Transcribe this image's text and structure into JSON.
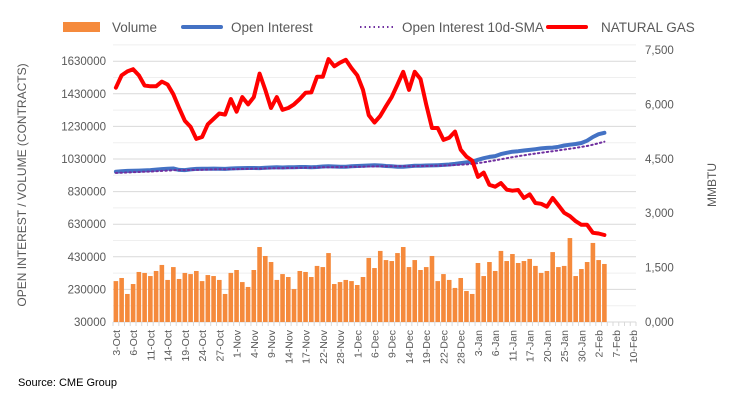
{
  "chart_data": {
    "type": "bar+line",
    "legend": {
      "placement": "top",
      "items": [
        {
          "label": "Volume",
          "color": "#F58A3C",
          "kind": "bar"
        },
        {
          "label": "Open Interest",
          "color": "#4472C4",
          "kind": "line"
        },
        {
          "label": "Open Interest 10d-SMA",
          "color": "#7030A0",
          "kind": "dotted"
        },
        {
          "label": "NATURAL GAS",
          "color": "#FF0000",
          "kind": "line"
        }
      ]
    },
    "ylabel_left": "OPEN INTEREST / VOLUME (CONTRACTS)",
    "ylabel_right": "MMBTU",
    "ylim_left": [
      30000,
      1730000
    ],
    "ylim_right": [
      0,
      7500
    ],
    "yticks_left": [
      "30000",
      "230000",
      "430000",
      "630000",
      "830000",
      "1030000",
      "1230000",
      "1430000",
      "1630000"
    ],
    "yticks_left_values": [
      30000,
      230000,
      430000,
      630000,
      830000,
      1030000,
      1230000,
      1430000,
      1630000
    ],
    "yticks_right": [
      "0,000",
      "1,500",
      "3,000",
      "4,500",
      "6,000",
      "7,500"
    ],
    "yticks_right_values": [
      0,
      1500,
      3000,
      4500,
      6000,
      7500
    ],
    "xtick_labels": [
      "3-Oct",
      "6-Oct",
      "11-Oct",
      "14-Oct",
      "19-Oct",
      "24-Oct",
      "27-Oct",
      "1-Nov",
      "4-Nov",
      "9-Nov",
      "14-Nov",
      "17-Nov",
      "22-Nov",
      "28-Nov",
      "1-Dec",
      "6-Dec",
      "9-Dec",
      "14-Dec",
      "19-Dec",
      "22-Dec",
      "28-Dec",
      "3-Jan",
      "6-Jan",
      "11-Jan",
      "17-Jan",
      "20-Jan",
      "25-Jan",
      "30-Jan",
      "2-Feb",
      "7-Feb",
      "10-Feb"
    ],
    "total_slots": 91,
    "grid": true,
    "series": [
      {
        "name": "Volume",
        "axis": "left",
        "values_thousands": [
          281,
          300,
          202,
          263,
          337,
          331,
          312,
          343,
          380,
          288,
          367,
          294,
          331,
          324,
          343,
          281,
          318,
          312,
          288,
          202,
          331,
          349,
          275,
          245,
          349,
          490,
          435,
          398,
          288,
          324,
          306,
          232,
          343,
          337,
          306,
          374,
          367,
          453,
          263,
          275,
          288,
          281,
          257,
          306,
          423,
          361,
          466,
          410,
          404,
          453,
          490,
          367,
          410,
          349,
          367,
          435,
          281,
          324,
          288,
          239,
          300,
          220,
          202,
          392,
          312,
          398,
          343,
          466,
          404,
          447,
          392,
          404,
          417,
          374,
          331,
          343,
          459,
          367,
          374,
          545,
          312,
          355,
          398,
          515,
          410,
          386
        ]
      },
      {
        "name": "Open Interest",
        "axis": "left",
        "values_thousands": [
          952,
          955,
          957,
          958,
          959,
          960,
          962,
          965,
          968,
          970,
          972,
          963,
          962,
          966,
          969,
          970,
          970,
          971,
          970,
          969,
          972,
          973,
          974,
          975,
          975,
          974,
          976,
          978,
          979,
          978,
          980,
          980,
          981,
          981,
          980,
          981,
          984,
          985,
          984,
          983,
          983,
          985,
          987,
          989,
          990,
          992,
          990,
          987,
          985,
          983,
          982,
          985,
          988,
          989,
          990,
          991,
          992,
          994,
          996,
          1000,
          1005,
          1009,
          1013,
          1025,
          1035,
          1043,
          1048,
          1060,
          1068,
          1075,
          1078,
          1082,
          1086,
          1090,
          1095,
          1098,
          1100,
          1105,
          1113,
          1118,
          1122,
          1128,
          1142,
          1165,
          1182,
          1191
        ]
      },
      {
        "name": "Open Interest 10d-SMA",
        "axis": "left",
        "values_thousands": [
          945,
          946,
          947,
          949,
          950,
          952,
          953,
          955,
          957,
          959,
          961,
          962,
          962,
          963,
          963,
          964,
          965,
          966,
          967,
          967,
          968,
          968,
          969,
          970,
          971,
          971,
          972,
          973,
          973,
          974,
          975,
          975,
          976,
          977,
          977,
          978,
          979,
          979,
          980,
          981,
          981,
          982,
          982,
          983,
          984,
          984,
          985,
          985,
          985,
          986,
          986,
          986,
          986,
          987,
          987,
          988,
          989,
          990,
          991,
          993,
          995,
          997,
          1000,
          1005,
          1010,
          1016,
          1022,
          1028,
          1035,
          1041,
          1047,
          1053,
          1058,
          1063,
          1068,
          1073,
          1078,
          1083,
          1088,
          1093,
          1098,
          1104,
          1110,
          1118,
          1127,
          1136
        ]
      },
      {
        "name": "NATURAL GAS",
        "axis": "right",
        "values": [
          6460,
          6800,
          6910,
          6970,
          6800,
          6520,
          6500,
          6500,
          6630,
          6550,
          6280,
          5900,
          5550,
          5380,
          5050,
          5100,
          5450,
          5600,
          5750,
          5720,
          6150,
          5800,
          6200,
          6000,
          6200,
          6850,
          6400,
          5900,
          6200,
          5850,
          5900,
          6000,
          6150,
          6320,
          6330,
          6760,
          6760,
          7250,
          7050,
          7150,
          7230,
          7000,
          6800,
          6400,
          5700,
          5500,
          5680,
          5950,
          6200,
          6550,
          6900,
          6400,
          6900,
          6700,
          6000,
          5350,
          5350,
          5020,
          5080,
          5250,
          4750,
          4560,
          4450,
          4000,
          4120,
          3780,
          3730,
          3830,
          3650,
          3620,
          3640,
          3420,
          3520,
          3280,
          3260,
          3180,
          3420,
          3220,
          3010,
          2920,
          2780,
          2680,
          2680,
          2460,
          2440,
          2400
        ]
      }
    ]
  },
  "source": "Source: CME Group"
}
